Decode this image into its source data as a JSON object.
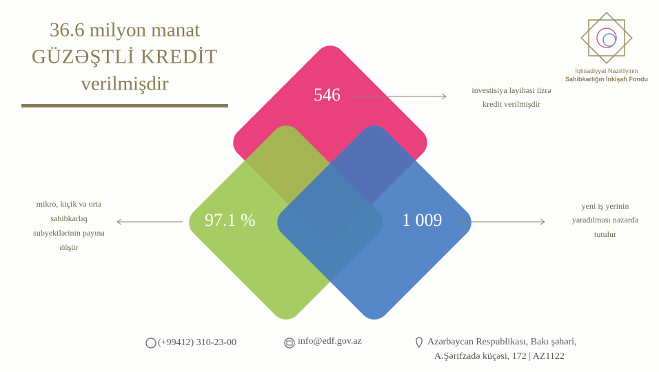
{
  "header": {
    "title_lines": [
      "36.6 milyon manat",
      "GÜZƏŞTLİ KREDİT",
      "verilmişdir"
    ]
  },
  "logo": {
    "lines": [
      "İqtisadiyyat Nazirliyinin",
      "Sahibkarlığın İnkişafı Fondu"
    ]
  },
  "stats": [
    {
      "value": "546",
      "caption_lines": [
        "investisiya layihəsi üzrə",
        "kredit verilmişdir"
      ]
    },
    {
      "value": "97.1 %",
      "caption_lines": [
        "mikro, kiçik və orta",
        "sahibkarlıq",
        "subyektlərinin payına",
        "düşür"
      ]
    },
    {
      "value": "1 009",
      "caption_lines": [
        "yeni iş yerinin",
        "yaradılması nəzərdə",
        "tutulur"
      ]
    }
  ],
  "footer": {
    "phone": "(+99412) 310-23-00",
    "email": "info@edf.gov.az",
    "address_lines": [
      "Azərbaycan Respublikası, Bakı şəhəri,",
      "A.Şərifzadə küçəsi, 172  | AZ1122"
    ]
  }
}
